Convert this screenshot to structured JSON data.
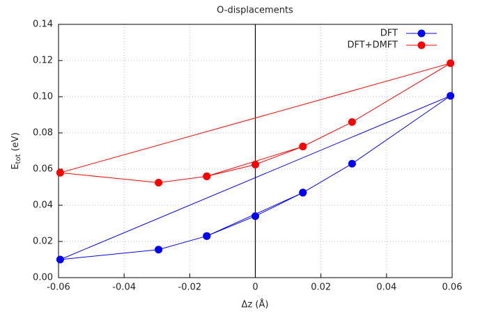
{
  "chart_data": {
    "type": "line",
    "title": "O-displacements",
    "xlabel": "Δz (Å)",
    "ylabel": "E",
    "ylabel_sub": "tot",
    "ylabel_unit": " (eV)",
    "x": [
      0.0145,
      0,
      -0.0148,
      0.0145,
      0.0295,
      0.0595,
      -0.0595,
      -0.0295,
      -0.0148
    ],
    "series": [
      {
        "name": "DFT",
        "color": "#0000ff",
        "values": [
          0.047,
          0.034,
          0.023,
          0.047,
          0.063,
          0.1005,
          0.01,
          0.0155,
          0.023
        ]
      },
      {
        "name": "DFT+DMFT",
        "color": "#ff0000",
        "values": [
          0.0725,
          0.0625,
          0.056,
          0.0725,
          0.086,
          0.1185,
          0.058,
          0.0525,
          0.056
        ]
      }
    ],
    "xlim": [
      -0.06,
      0.06
    ],
    "xticks": [
      -0.06,
      -0.04,
      -0.02,
      0,
      0.02,
      0.04,
      0.06
    ],
    "ylim": [
      0,
      0.14
    ],
    "yticks": [
      {
        "value": 0,
        "label": "0.00"
      },
      0.02,
      0.04,
      0.06,
      0.08,
      {
        "value": 0.1,
        "label": "0.10"
      },
      0.12,
      0.14
    ],
    "grid": true,
    "legend": "top-right"
  }
}
